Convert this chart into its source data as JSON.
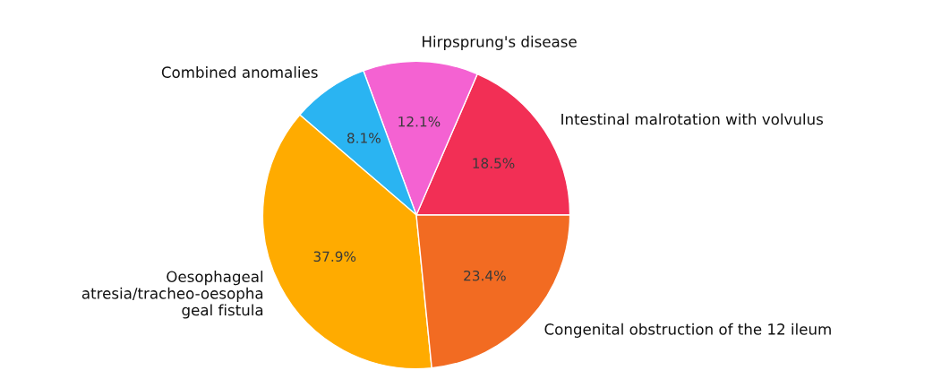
{
  "chart_data": {
    "type": "pie",
    "categories": [
      "Intestinal malrotation with volvulus",
      "Hirpsprung's disease",
      "Combined anomalies",
      "Oesophageal\natresia/tracheo-oesopha\ngeal fistula",
      "Congenital obstruction of the 12 ileum"
    ],
    "values": [
      18.5,
      12.1,
      8.1,
      37.9,
      23.4
    ],
    "value_labels": [
      "18.5%",
      "12.1%",
      "8.1%",
      "37.9%",
      "23.4%"
    ],
    "colors": [
      "#f22f55",
      "#f462d2",
      "#2ab4f2",
      "#ffab00",
      "#f26b22"
    ]
  }
}
